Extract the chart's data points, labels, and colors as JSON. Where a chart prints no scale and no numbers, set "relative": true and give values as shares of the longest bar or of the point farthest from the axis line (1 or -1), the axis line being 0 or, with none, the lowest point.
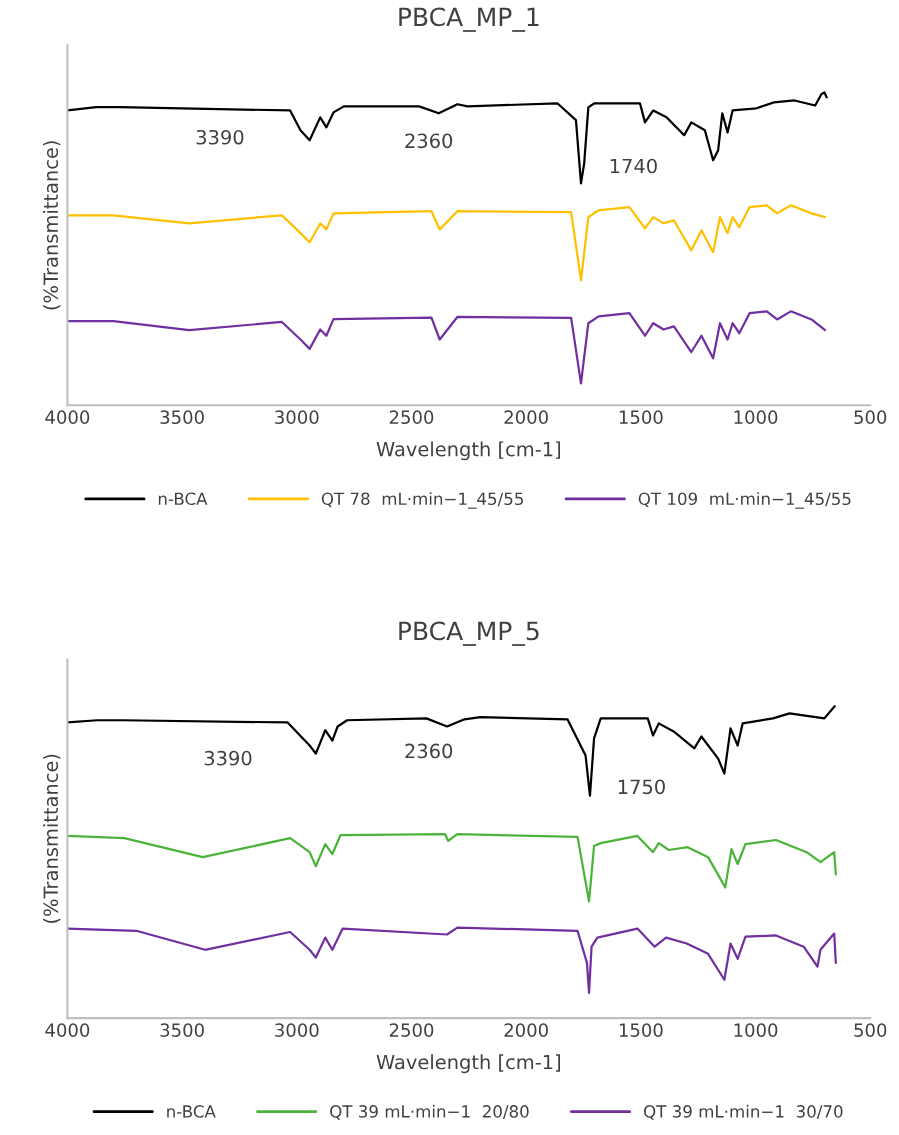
{
  "chart_data": [
    {
      "type": "line",
      "title": "PBCA_MP_1",
      "xlabel": "Wavelength [cm-1]",
      "ylabel": "(%Transmittance)",
      "relative": true,
      "xlim": [
        4000,
        500
      ],
      "xticks": [
        4000,
        3500,
        3000,
        2500,
        2000,
        1500,
        1000,
        500
      ],
      "grid": false,
      "legend": "bottom",
      "tick_labels": "x",
      "annotations": [
        "3390",
        "2360",
        "1740"
      ],
      "series": [
        {
          "name": "n-BCA",
          "color": "#000000",
          "x": [
            4000,
            3874,
            3771,
            3029,
            2984,
            2944,
            2898,
            2871,
            2840,
            2795,
            2467,
            2381,
            2300,
            2255,
            1864,
            1783,
            1761,
            1747,
            1729,
            1702,
            1504,
            1482,
            1446,
            1388,
            1311,
            1280,
            1221,
            1185,
            1163,
            1145,
            1122,
            1100,
            996,
            920,
            830,
            740,
            713,
            700,
            690
          ],
          "values": [
            0.942,
            0.953,
            0.953,
            0.942,
            0.879,
            0.847,
            0.92,
            0.888,
            0.936,
            0.955,
            0.955,
            0.933,
            0.962,
            0.955,
            0.965,
            0.911,
            0.709,
            0.773,
            0.952,
            0.965,
            0.965,
            0.904,
            0.942,
            0.92,
            0.863,
            0.904,
            0.879,
            0.783,
            0.815,
            0.933,
            0.872,
            0.942,
            0.949,
            0.968,
            0.974,
            0.958,
            0.994,
            1.0,
            0.984
          ]
        },
        {
          "name": "QT 78  mL·min−1_45/55",
          "color": "#ffc000",
          "x": [
            4000,
            3800,
            3469,
            3065,
            2984,
            2944,
            2898,
            2871,
            2840,
            2413,
            2377,
            2300,
            1804,
            1761,
            1729,
            1684,
            1550,
            1482,
            1446,
            1401,
            1356,
            1280,
            1236,
            1185,
            1155,
            1122,
            1100,
            1071,
            1026,
            951,
            906,
            846,
            756,
            697
          ],
          "values": [
            0.607,
            0.607,
            0.581,
            0.607,
            0.55,
            0.521,
            0.581,
            0.562,
            0.613,
            0.62,
            0.562,
            0.62,
            0.617,
            0.399,
            0.601,
            0.623,
            0.633,
            0.565,
            0.601,
            0.581,
            0.591,
            0.495,
            0.559,
            0.489,
            0.601,
            0.55,
            0.601,
            0.569,
            0.633,
            0.639,
            0.613,
            0.639,
            0.613,
            0.601
          ]
        },
        {
          "name": "QT 109  mL·min−1_45/55",
          "color": "#7030a0",
          "x": [
            4000,
            3800,
            3469,
            3065,
            2984,
            2944,
            2898,
            2871,
            2840,
            2413,
            2377,
            2300,
            1804,
            1761,
            1729,
            1684,
            1550,
            1482,
            1446,
            1401,
            1356,
            1280,
            1236,
            1185,
            1155,
            1122,
            1100,
            1071,
            1026,
            951,
            906,
            846,
            756,
            697
          ],
          "values": [
            0.269,
            0.269,
            0.24,
            0.266,
            0.21,
            0.18,
            0.242,
            0.222,
            0.275,
            0.28,
            0.21,
            0.282,
            0.279,
            0.07,
            0.262,
            0.284,
            0.294,
            0.222,
            0.262,
            0.242,
            0.252,
            0.17,
            0.222,
            0.15,
            0.262,
            0.21,
            0.262,
            0.23,
            0.294,
            0.3,
            0.274,
            0.3,
            0.274,
            0.24
          ]
        }
      ]
    },
    {
      "type": "line",
      "title": "PBCA_MP_5",
      "xlabel": "Wavelength [cm-1]",
      "ylabel": "(%Transmittance)",
      "relative": true,
      "xlim": [
        4000,
        500
      ],
      "xticks": [
        4000,
        3500,
        3000,
        2500,
        2000,
        1500,
        1000,
        500
      ],
      "grid": false,
      "legend": "bottom",
      "tick_labels": "x",
      "annotations": [
        "3390",
        "2360",
        "1750"
      ],
      "series": [
        {
          "name": "n-BCA",
          "color": "#000000",
          "x": [
            4000,
            3870,
            3760,
            3040,
            2944,
            2917,
            2876,
            2845,
            2822,
            2781,
            2435,
            2345,
            2269,
            2200,
            1820,
            1741,
            1722,
            1704,
            1675,
            1470,
            1447,
            1422,
            1357,
            1267,
            1236,
            1163,
            1136,
            1109,
            1078,
            1056,
            924,
            852,
            700,
            655
          ],
          "values": [
            0.948,
            0.955,
            0.955,
            0.948,
            0.874,
            0.848,
            0.923,
            0.89,
            0.935,
            0.955,
            0.961,
            0.935,
            0.958,
            0.965,
            0.958,
            0.842,
            0.713,
            0.897,
            0.961,
            0.961,
            0.906,
            0.945,
            0.919,
            0.865,
            0.903,
            0.832,
            0.784,
            0.929,
            0.874,
            0.945,
            0.961,
            0.977,
            0.961,
            1.0
          ]
        },
        {
          "name": "QT 39 mL·min−1  20/80",
          "color": "#4cb33a",
          "x": [
            4000,
            3752,
            3410,
            3029,
            2944,
            2917,
            2876,
            2845,
            2809,
            2354,
            2340,
            2300,
            1776,
            1726,
            1704,
            1675,
            1515,
            1447,
            1422,
            1378,
            1296,
            1207,
            1132,
            1105,
            1078,
            1044,
            911,
            777,
            717,
            657,
            650
          ],
          "values": [
            0.584,
            0.577,
            0.516,
            0.577,
            0.532,
            0.487,
            0.558,
            0.526,
            0.587,
            0.59,
            0.568,
            0.59,
            0.581,
            0.374,
            0.552,
            0.561,
            0.584,
            0.532,
            0.561,
            0.539,
            0.548,
            0.516,
            0.419,
            0.542,
            0.494,
            0.558,
            0.571,
            0.532,
            0.5,
            0.532,
            0.461
          ]
        },
        {
          "name": "QT 39 mL·min−1  30/70",
          "color": "#7030a0",
          "x": [
            4000,
            3700,
            3400,
            3029,
            2944,
            2917,
            2876,
            2845,
            2800,
            2345,
            2300,
            1776,
            1735,
            1726,
            1715,
            1690,
            1515,
            1440,
            1390,
            1300,
            1207,
            1136,
            1109,
            1078,
            1044,
            911,
            790,
            730,
            717,
            657,
            650
          ],
          "values": [
            0.287,
            0.28,
            0.219,
            0.276,
            0.219,
            0.194,
            0.258,
            0.219,
            0.287,
            0.268,
            0.29,
            0.28,
            0.177,
            0.081,
            0.229,
            0.258,
            0.287,
            0.229,
            0.258,
            0.239,
            0.206,
            0.123,
            0.239,
            0.19,
            0.261,
            0.265,
            0.229,
            0.165,
            0.219,
            0.271,
            0.177
          ]
        }
      ]
    }
  ]
}
